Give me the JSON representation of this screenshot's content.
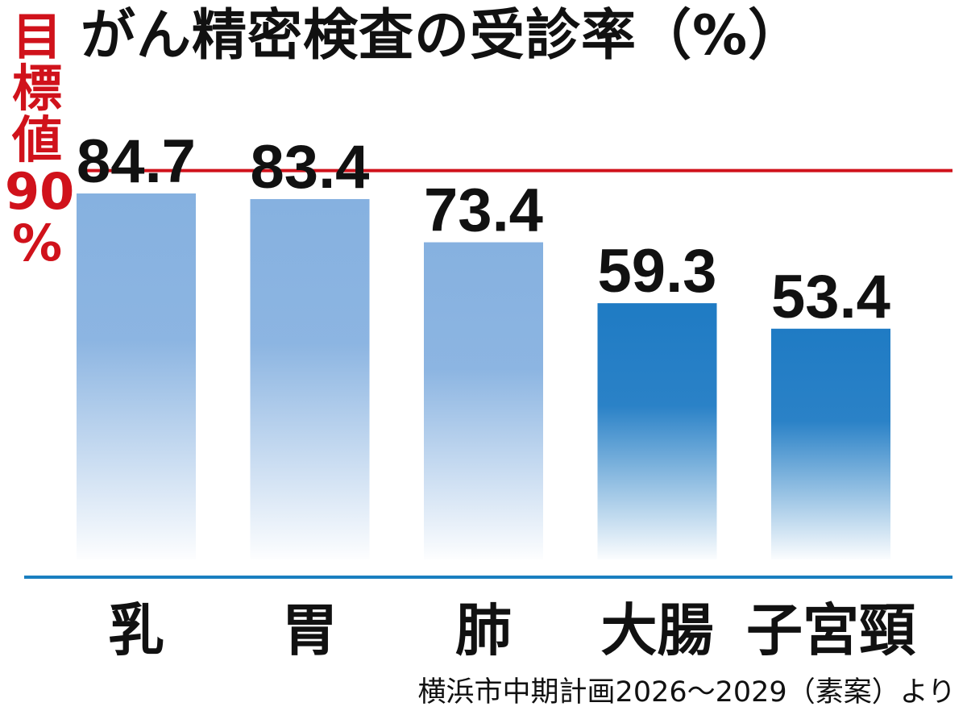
{
  "title": "がん精密検査の受診率（%）",
  "target": {
    "lines": [
      "目",
      "標",
      "値",
      "90",
      "%"
    ],
    "value": 90,
    "color": "#d0121b"
  },
  "source": "横浜市中期計画2026〜2029（素案）より",
  "chart_data": {
    "type": "bar",
    "title": "がん精密検査の受診率（%）",
    "categories": [
      "乳",
      "胃",
      "肺",
      "大腸",
      "子宮頸"
    ],
    "values": [
      84.7,
      83.4,
      73.4,
      59.3,
      53.4
    ],
    "value_labels": [
      "84.7",
      "83.4",
      "73.4",
      "59.3",
      "53.4"
    ],
    "ylim": [
      0,
      90
    ],
    "target_line": 90,
    "bar_colors": [
      "#86b1e0",
      "#86b1e0",
      "#86b1e0",
      "#1f7bc4",
      "#1f7bc4"
    ],
    "baseline_color": "#1a7fc0",
    "grid": false,
    "legend": "none"
  }
}
